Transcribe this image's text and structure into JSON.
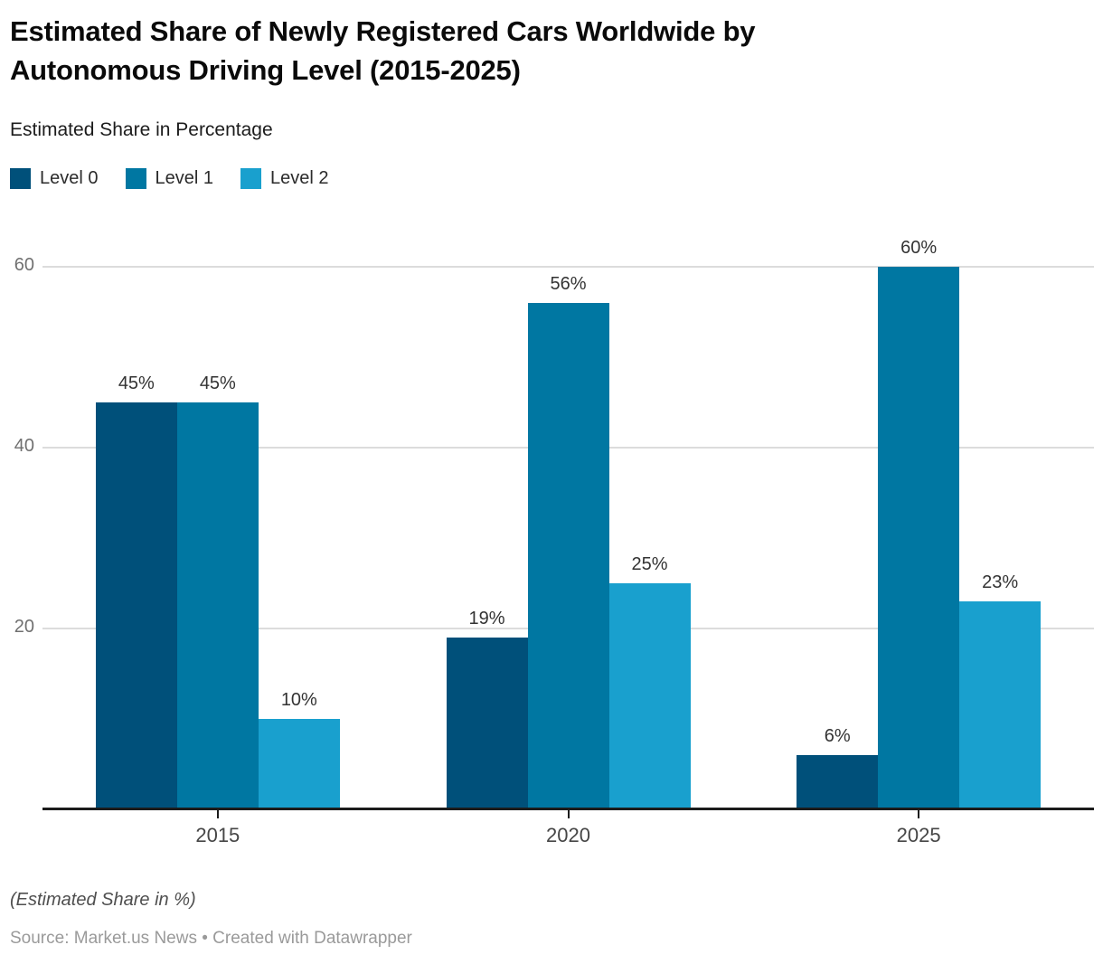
{
  "header": {
    "title": "Estimated Share of Newly Registered Cars Worldwide by Autonomous Driving Level (2015-2025)",
    "subtitle": "Estimated Share in Percentage"
  },
  "chart_data": {
    "type": "bar",
    "title": "Estimated Share of Newly Registered Cars Worldwide by Autonomous Driving Level (2015-2025)",
    "subtitle": "Estimated Share in Percentage",
    "categories": [
      "2015",
      "2020",
      "2025"
    ],
    "series": [
      {
        "name": "Level 0",
        "color": "#00507a",
        "values": [
          45,
          19,
          6
        ]
      },
      {
        "name": "Level 1",
        "color": "#0077a2",
        "values": [
          45,
          56,
          60
        ]
      },
      {
        "name": "Level 2",
        "color": "#19a0ce",
        "values": [
          10,
          25,
          23
        ]
      }
    ],
    "value_suffix": "%",
    "yticks": [
      20,
      40,
      60
    ],
    "ylim": [
      0,
      60
    ],
    "grid": true,
    "legend_position": "top-left"
  },
  "footer": {
    "note": "(Estimated Share in %)",
    "source": "Source: Market.us News • Created with Datawrapper"
  }
}
